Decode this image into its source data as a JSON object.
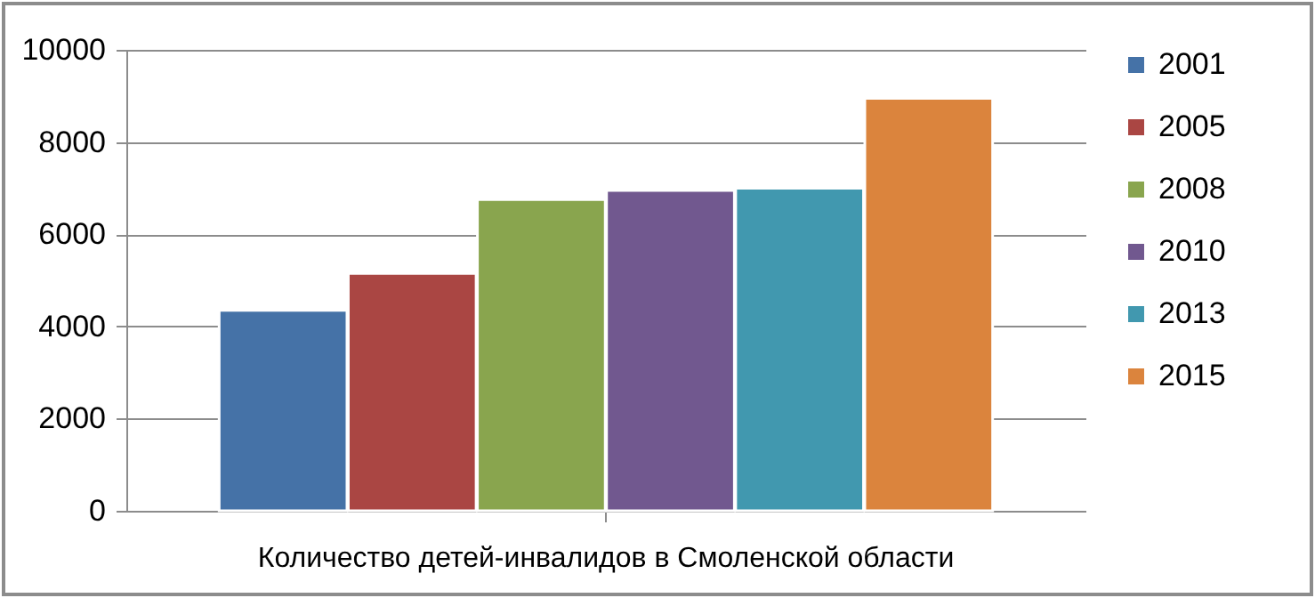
{
  "chart_data": {
    "type": "bar",
    "categories": [
      "Количество детей-инвалидов в Смоленской области"
    ],
    "series": [
      {
        "name": "2001",
        "color": "#4572a7",
        "values": [
          4350
        ]
      },
      {
        "name": "2005",
        "color": "#aa4643",
        "values": [
          5150
        ]
      },
      {
        "name": "2008",
        "color": "#89a54e",
        "values": [
          6750
        ]
      },
      {
        "name": "2010",
        "color": "#71588f",
        "values": [
          6950
        ]
      },
      {
        "name": "2013",
        "color": "#4198af",
        "values": [
          7000
        ]
      },
      {
        "name": "2015",
        "color": "#db843d",
        "values": [
          8950
        ]
      }
    ],
    "ylim": [
      0,
      10000
    ],
    "yticks": [
      0,
      2000,
      4000,
      6000,
      8000,
      10000
    ],
    "grid": "y",
    "legend": "right"
  }
}
